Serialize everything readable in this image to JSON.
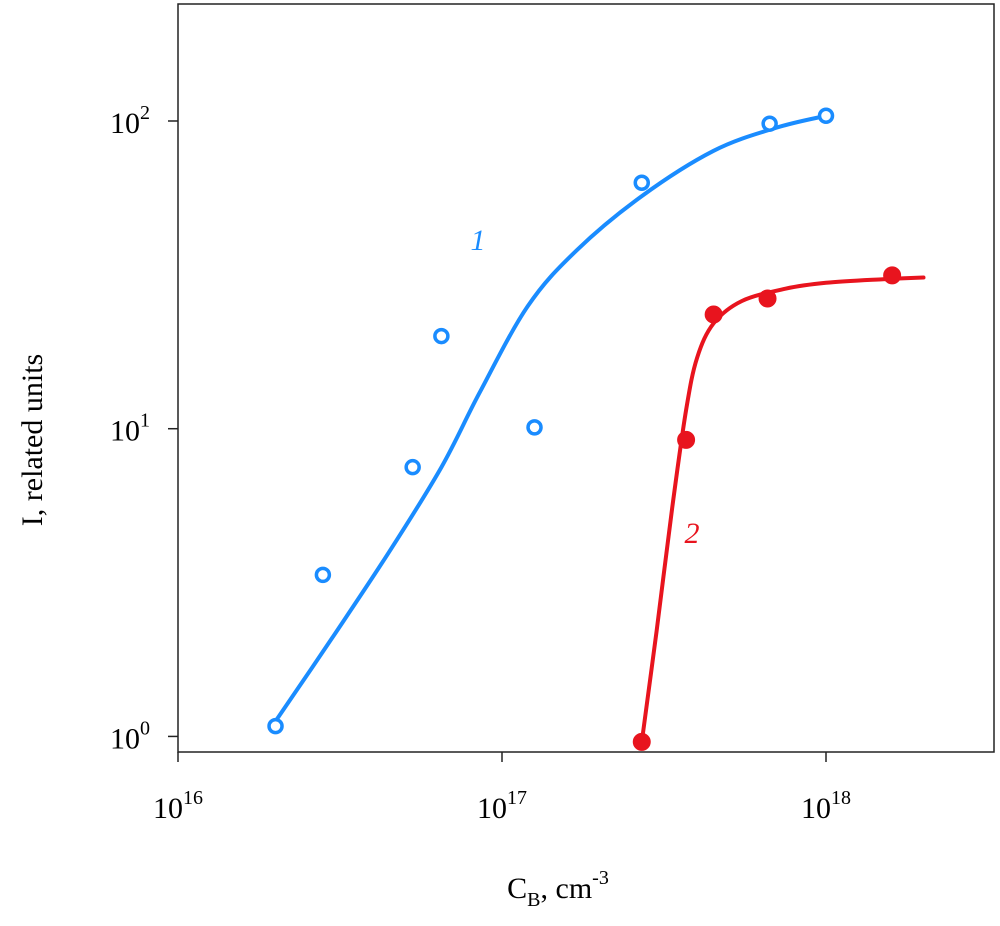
{
  "chart_data": {
    "type": "scatter",
    "title": "",
    "xlabel": "C",
    "xlabel_sub": "B",
    "xlabel_unit": ", cm",
    "xlabel_unit_exp": "-3",
    "ylabel": "I, related units",
    "xscale": "log",
    "yscale": "log",
    "xlim": [
      1e+16,
      3.3e+18
    ],
    "ylim": [
      0.89,
      240
    ],
    "x_ticks": [
      {
        "base": "10",
        "exp": "16",
        "value": 1e+16
      },
      {
        "base": "10",
        "exp": "17",
        "value": 1e+17
      },
      {
        "base": "10",
        "exp": "18",
        "value": 1e+18
      }
    ],
    "y_ticks": [
      {
        "base": "10",
        "exp": "0",
        "value": 1
      },
      {
        "base": "10",
        "exp": "1",
        "value": 10
      },
      {
        "base": "10",
        "exp": "2",
        "value": 100
      }
    ],
    "grid": false,
    "series": [
      {
        "name": "1",
        "color": "#1a8cff",
        "marker": "open-circle",
        "points": [
          {
            "x": 2e+16,
            "y": 1.08
          },
          {
            "x": 2.8e+16,
            "y": 3.35
          },
          {
            "x": 5.3e+16,
            "y": 7.5
          },
          {
            "x": 6.5e+16,
            "y": 20.0
          },
          {
            "x": 1.26e+17,
            "y": 10.1
          },
          {
            "x": 2.7e+17,
            "y": 63.0
          },
          {
            "x": 6.7e+17,
            "y": 98.0
          },
          {
            "x": 1e+18,
            "y": 104.0
          }
        ],
        "fit": [
          {
            "x": 2e+16,
            "y": 1.12
          },
          {
            "x": 3e+16,
            "y": 2.1
          },
          {
            "x": 4.5e+16,
            "y": 4.0
          },
          {
            "x": 6.5e+16,
            "y": 7.5
          },
          {
            "x": 8.5e+16,
            "y": 13.0
          },
          {
            "x": 1.2e+17,
            "y": 25.0
          },
          {
            "x": 1.7e+17,
            "y": 38.0
          },
          {
            "x": 2.7e+17,
            "y": 57.0
          },
          {
            "x": 4.5e+17,
            "y": 80.0
          },
          {
            "x": 7e+17,
            "y": 95.0
          },
          {
            "x": 1e+18,
            "y": 104.0
          }
        ]
      },
      {
        "name": "2",
        "color": "#e8141e",
        "marker": "filled-circle",
        "points": [
          {
            "x": 2.7e+17,
            "y": 0.96
          },
          {
            "x": 3.7e+17,
            "y": 9.2
          },
          {
            "x": 4.5e+17,
            "y": 23.5
          },
          {
            "x": 6.6e+17,
            "y": 26.5
          },
          {
            "x": 1.6e+18,
            "y": 31.5
          }
        ],
        "fit": [
          {
            "x": 2.7e+17,
            "y": 0.96
          },
          {
            "x": 3e+17,
            "y": 2.2
          },
          {
            "x": 3.35e+17,
            "y": 5.5
          },
          {
            "x": 3.7e+17,
            "y": 11.5
          },
          {
            "x": 4e+17,
            "y": 17.0
          },
          {
            "x": 4.5e+17,
            "y": 22.0
          },
          {
            "x": 5.5e+17,
            "y": 26.0
          },
          {
            "x": 7.5e+17,
            "y": 28.5
          },
          {
            "x": 1e+18,
            "y": 29.8
          },
          {
            "x": 1.5e+18,
            "y": 30.6
          },
          {
            "x": 2e+18,
            "y": 31.0
          }
        ],
        "label_at": {
          "x": 4e+17,
          "y": 2.5
        }
      }
    ]
  }
}
